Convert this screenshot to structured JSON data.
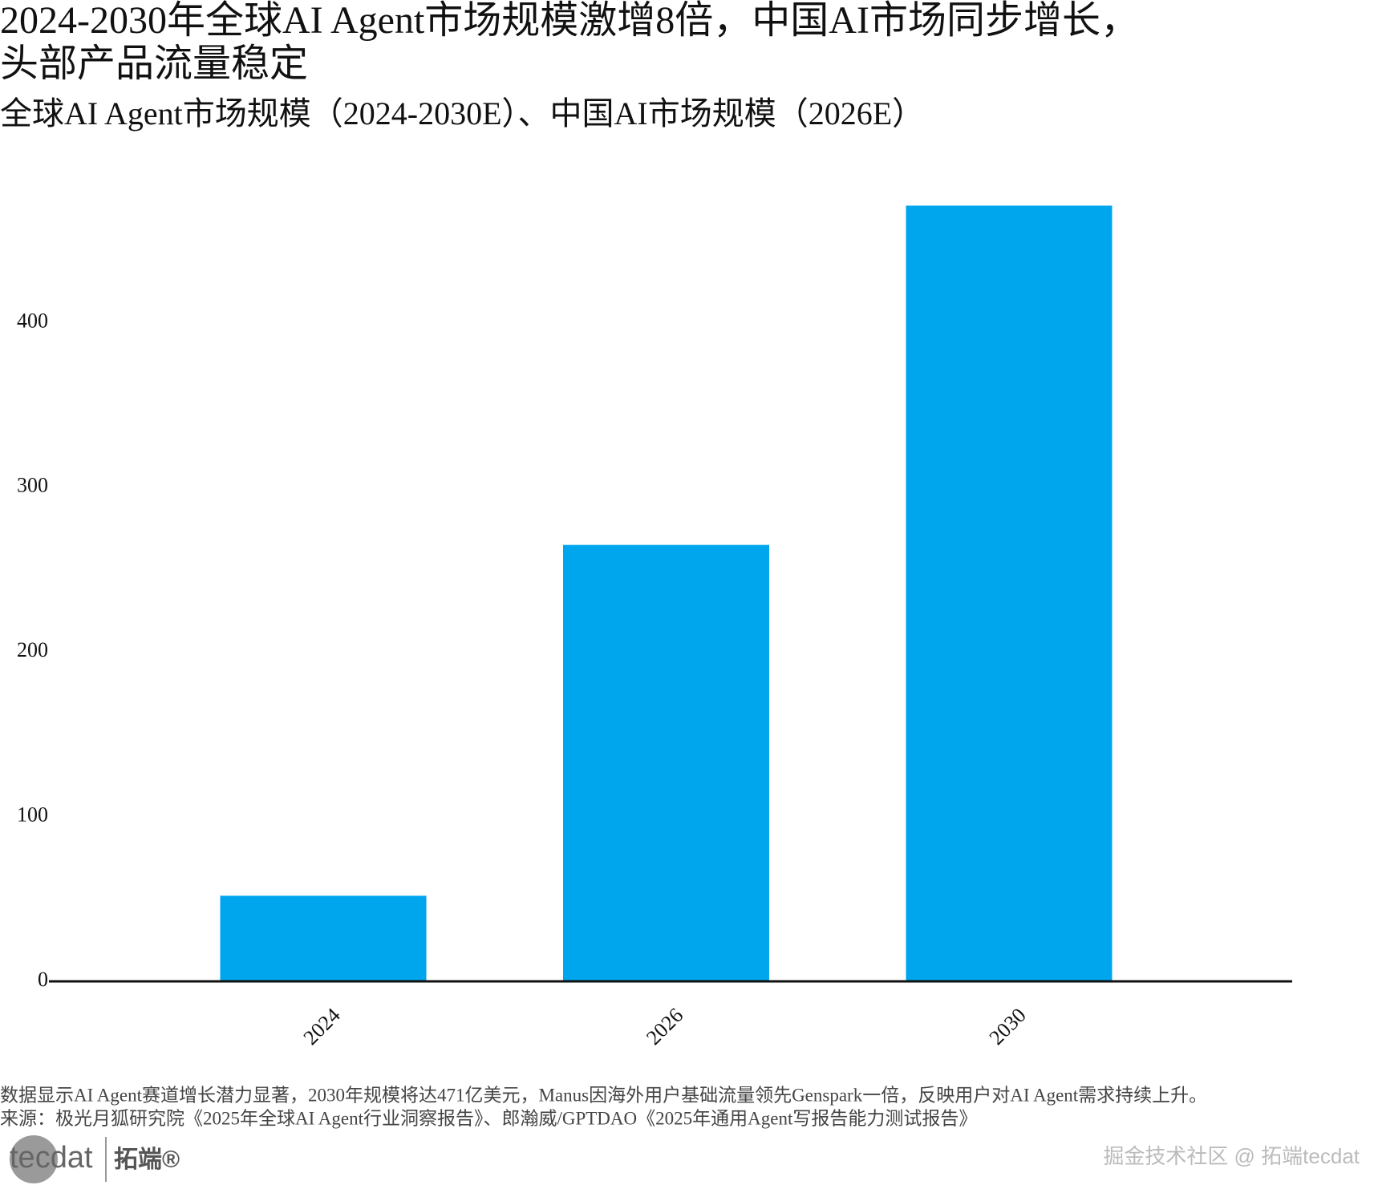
{
  "chart_data": {
    "type": "bar",
    "title": "2024-2030年全球AI Agent市场规模激增8倍，中国AI市场同步增长，头部产品流量稳定",
    "subtitle": "全球AI Agent市场规模（2024-2030E）、中国AI市场规模（2026E）",
    "categories": [
      "2024",
      "2026",
      "2030"
    ],
    "values": [
      52,
      265,
      471
    ],
    "color": "#00a6ed",
    "ylim": [
      0,
      480
    ],
    "yticks": [
      0,
      100,
      200,
      300,
      400
    ],
    "grid": false,
    "caption": "数据显示AI Agent赛道增长潜力显著，2030年规模将达471亿美元，Manus因海外用户基础流量领先Genspark一倍，反映用户对AI Agent需求持续上升。",
    "source": "来源：极光月狐研究院《2025年全球AI Agent行业洞察报告》、郎瀚威/GPTDAO《2025年通用Agent写报告能力测试报告》"
  },
  "footer": {
    "logo": "tecdat",
    "logo_cn": "拓端®",
    "watermark": "掘金技术社区 @ 拓端tecdat"
  }
}
